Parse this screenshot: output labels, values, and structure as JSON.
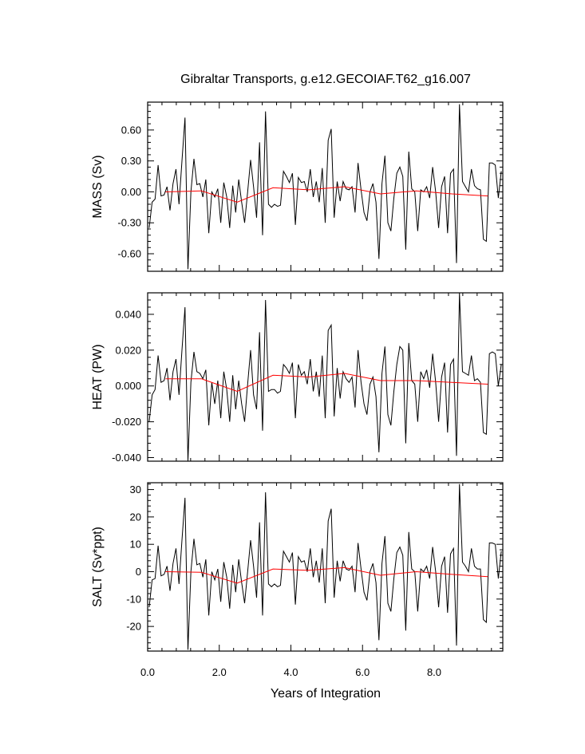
{
  "chart_data": {
    "type": "line",
    "title": "Gibraltar Transports, g.e12.GECOIAF.T62_g16.007",
    "xlabel": "Years of Integration",
    "x_ticks": [
      "0.0",
      "2.0",
      "4.0",
      "6.0",
      "8.0"
    ],
    "x_tick_values": [
      0,
      2,
      4,
      6,
      8
    ],
    "xlim": [
      0,
      9.917
    ],
    "x_monthly": [
      0.042,
      0.125,
      0.208,
      0.292,
      0.375,
      0.458,
      0.542,
      0.625,
      0.708,
      0.792,
      0.875,
      0.958,
      1.042,
      1.125,
      1.208,
      1.292,
      1.375,
      1.458,
      1.542,
      1.625,
      1.708,
      1.792,
      1.875,
      1.958,
      2.042,
      2.125,
      2.208,
      2.292,
      2.375,
      2.458,
      2.542,
      2.625,
      2.708,
      2.792,
      2.875,
      2.958,
      3.042,
      3.125,
      3.208,
      3.292,
      3.375,
      3.458,
      3.542,
      3.625,
      3.708,
      3.792,
      3.875,
      3.958,
      4.042,
      4.125,
      4.208,
      4.292,
      4.375,
      4.458,
      4.542,
      4.625,
      4.708,
      4.792,
      4.875,
      4.958,
      5.042,
      5.125,
      5.208,
      5.292,
      5.375,
      5.458,
      5.542,
      5.625,
      5.708,
      5.792,
      5.875,
      5.958,
      6.042,
      6.125,
      6.208,
      6.292,
      6.375,
      6.458,
      6.542,
      6.625,
      6.708,
      6.792,
      6.875,
      6.958,
      7.042,
      7.125,
      7.208,
      7.292,
      7.375,
      7.458,
      7.542,
      7.625,
      7.708,
      7.792,
      7.875,
      7.958,
      8.042,
      8.125,
      8.208,
      8.292,
      8.375,
      8.458,
      8.542,
      8.625,
      8.708,
      8.792,
      8.875,
      8.958,
      9.042,
      9.125,
      9.208,
      9.292,
      9.375,
      9.458,
      9.542,
      9.625,
      9.708,
      9.792,
      9.875
    ],
    "x_annual": [
      0.5,
      1.5,
      2.5,
      3.5,
      4.5,
      5.5,
      6.5,
      7.5,
      8.5,
      9.5
    ],
    "panels": [
      {
        "ylabel": "MASS (Sv)",
        "ylim": [
          -0.77,
          0.87
        ],
        "y_ticks": [
          "0.60",
          "0.30",
          "0.00",
          "-0.30",
          "-0.60"
        ],
        "y_tick_values": [
          0.6,
          0.3,
          0.0,
          -0.3,
          -0.6
        ],
        "monthly": [
          -0.35,
          -0.1,
          -0.07,
          0.26,
          -0.04,
          -0.03,
          0.05,
          -0.18,
          0.08,
          0.22,
          -0.12,
          0.3,
          0.72,
          -0.75,
          0.0,
          0.32,
          0.07,
          0.08,
          -0.05,
          0.12,
          -0.4,
          0.0,
          -0.05,
          0.03,
          -0.3,
          0.09,
          -0.05,
          -0.35,
          0.06,
          -0.2,
          0.12,
          -0.1,
          -0.3,
          0.0,
          0.31,
          0.05,
          -0.25,
          0.48,
          -0.42,
          0.78,
          -0.12,
          -0.15,
          -0.12,
          -0.14,
          -0.13,
          0.2,
          0.15,
          0.09,
          0.18,
          -0.32,
          0.14,
          0.09,
          0.1,
          0.0,
          0.22,
          -0.05,
          0.1,
          -0.1,
          0.23,
          -0.3,
          0.5,
          0.61,
          -0.25,
          0.1,
          -0.09,
          0.1,
          0.03,
          0.02,
          0.05,
          -0.2,
          0.28,
          0.02,
          -0.2,
          -0.28,
          0.0,
          0.08,
          -0.1,
          -0.65,
          0.08,
          0.35,
          -0.3,
          -0.38,
          -0.06,
          0.18,
          0.24,
          0.15,
          -0.56,
          0.39,
          0.03,
          0.0,
          -0.38,
          0.02,
          0.0,
          0.05,
          -0.06,
          0.24,
          0.0,
          -0.35,
          0.05,
          0.15,
          -0.4,
          0.18,
          0.22,
          -0.69,
          0.85,
          0.1,
          0.05,
          0.0,
          0.22,
          0.06,
          0.03,
          0.02,
          -0.46,
          -0.48,
          0.28,
          0.28,
          0.26,
          -0.06,
          0.2
        ],
        "annual": [
          0.0,
          0.01,
          -0.1,
          0.04,
          0.02,
          0.05,
          -0.02,
          0.01,
          -0.02,
          -0.04
        ]
      },
      {
        "ylabel": "HEAT (PW)",
        "ylim": [
          -0.042,
          0.052
        ],
        "y_ticks": [
          "0.040",
          "0.020",
          "0.000",
          "-0.020",
          "-0.040"
        ],
        "y_tick_values": [
          0.04,
          0.02,
          0.0,
          -0.02,
          -0.04
        ],
        "monthly": [
          -0.02,
          -0.005,
          -0.002,
          0.017,
          0.002,
          0.003,
          0.01,
          -0.008,
          0.008,
          0.015,
          -0.005,
          0.02,
          0.044,
          -0.042,
          0.002,
          0.019,
          0.008,
          0.007,
          0.004,
          0.009,
          -0.022,
          0.002,
          -0.01,
          0.003,
          -0.018,
          0.008,
          -0.002,
          -0.02,
          0.006,
          -0.013,
          0.003,
          -0.01,
          -0.02,
          0.001,
          0.02,
          -0.005,
          -0.013,
          0.03,
          -0.025,
          0.048,
          -0.003,
          -0.002,
          -0.002,
          -0.004,
          -0.003,
          0.012,
          0.01,
          0.007,
          0.013,
          -0.018,
          0.012,
          0.006,
          0.008,
          0.001,
          0.015,
          -0.003,
          0.008,
          -0.006,
          0.017,
          -0.018,
          0.031,
          0.034,
          -0.017,
          0.01,
          -0.007,
          0.008,
          0.004,
          0.002,
          0.005,
          -0.012,
          0.02,
          0.002,
          -0.01,
          -0.016,
          0.001,
          0.005,
          -0.006,
          -0.037,
          0.007,
          0.022,
          -0.016,
          -0.022,
          -0.003,
          0.012,
          0.022,
          0.02,
          -0.032,
          0.024,
          0.003,
          0.001,
          -0.02,
          0.008,
          0.004,
          0.009,
          -0.001,
          0.018,
          0.002,
          -0.02,
          0.005,
          0.013,
          -0.026,
          0.012,
          0.015,
          -0.039,
          0.052,
          0.008,
          0.007,
          0.006,
          0.017,
          0.003,
          0.004,
          0.002,
          -0.026,
          -0.027,
          0.018,
          0.019,
          0.018,
          0.0,
          0.012
        ],
        "annual": [
          0.004,
          0.004,
          -0.003,
          0.006,
          0.005,
          0.007,
          0.003,
          0.003,
          0.002,
          0.001
        ]
      },
      {
        "ylabel": "SALT (Sv*ppt)",
        "ylim": [
          -29,
          32.5
        ],
        "y_ticks": [
          "30",
          "20",
          "10",
          "0",
          "-10",
          "-20"
        ],
        "y_tick_values": [
          30,
          20,
          10,
          0,
          -10,
          -20
        ],
        "monthly": [
          -13,
          -3,
          -2.5,
          9.5,
          -1.5,
          -1,
          2,
          -7,
          3,
          8.5,
          -4.5,
          11.5,
          27,
          -28.5,
          0,
          12,
          2.5,
          3,
          -2,
          4.5,
          -16,
          0,
          -3,
          1,
          -11,
          3.5,
          -2,
          -13.5,
          2.5,
          -7.5,
          4.5,
          -4,
          -11.5,
          0,
          11.5,
          2,
          -9.5,
          18,
          -16,
          29,
          -4.5,
          -5.5,
          -4.5,
          -5.5,
          -5,
          7.5,
          5.5,
          3.5,
          7,
          -12,
          5.5,
          3.5,
          4,
          0,
          8.5,
          -2,
          4,
          -4,
          8.5,
          -11.5,
          18.5,
          23,
          -9.5,
          4,
          -3.5,
          4,
          1,
          0.5,
          2,
          -7.5,
          10.5,
          1,
          -7.5,
          -10.5,
          0,
          3,
          -4,
          -25,
          3,
          13,
          -11.5,
          -14.5,
          -2.5,
          7,
          9,
          6,
          -21.5,
          14.5,
          1,
          0,
          -14.5,
          1,
          0,
          2,
          -2.5,
          9,
          0,
          -13,
          2,
          5.5,
          -15,
          6.5,
          8.5,
          -27,
          32,
          3.5,
          2,
          0,
          8.5,
          2,
          1,
          1,
          -17.5,
          -18.5,
          10.5,
          10.5,
          10,
          -2.5,
          7.5
        ],
        "annual": [
          0,
          -0.2,
          -4.2,
          1.0,
          0.5,
          1.5,
          -1.3,
          0.0,
          -1.0,
          -1.8
        ]
      }
    ]
  }
}
